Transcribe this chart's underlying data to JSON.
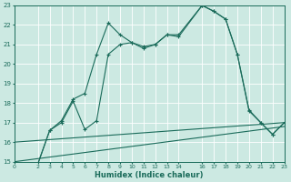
{
  "xlabel": "Humidex (Indice chaleur)",
  "bg_color": "#cce9e2",
  "grid_color": "#b8ddd6",
  "line_color": "#1a6b5a",
  "xlim": [
    0,
    23
  ],
  "ylim": [
    15,
    23
  ],
  "xticks": [
    0,
    2,
    3,
    4,
    5,
    6,
    7,
    8,
    9,
    10,
    11,
    12,
    13,
    14,
    16,
    17,
    18,
    19,
    20,
    21,
    22,
    23
  ],
  "yticks": [
    15,
    16,
    17,
    18,
    19,
    20,
    21,
    22,
    23
  ],
  "series": [
    {
      "x": [
        2,
        3,
        4,
        5,
        6,
        7,
        8,
        9,
        10,
        11,
        12,
        13,
        14,
        16,
        17,
        18,
        19,
        20,
        21,
        22,
        23
      ],
      "y": [
        14.9,
        16.6,
        17.1,
        18.2,
        18.5,
        20.5,
        22.1,
        21.5,
        21.1,
        20.9,
        21.0,
        21.5,
        21.5,
        23.0,
        22.7,
        22.3,
        20.5,
        17.65,
        17.0,
        16.4,
        17.0
      ],
      "marker": true
    },
    {
      "x": [
        2,
        3,
        4,
        5,
        6,
        7,
        8,
        9,
        10,
        11,
        12,
        13,
        14,
        16,
        17,
        18,
        19,
        20,
        21,
        22,
        23
      ],
      "y": [
        14.9,
        16.6,
        17.0,
        18.1,
        16.65,
        17.1,
        20.5,
        21.0,
        21.1,
        20.8,
        21.0,
        21.5,
        21.4,
        23.0,
        22.7,
        22.3,
        20.5,
        17.6,
        17.0,
        16.4,
        17.0
      ],
      "marker": true
    },
    {
      "x": [
        0,
        23
      ],
      "y": [
        16.0,
        17.0
      ],
      "marker": false
    },
    {
      "x": [
        0,
        23
      ],
      "y": [
        15.0,
        16.8
      ],
      "marker": false
    }
  ]
}
